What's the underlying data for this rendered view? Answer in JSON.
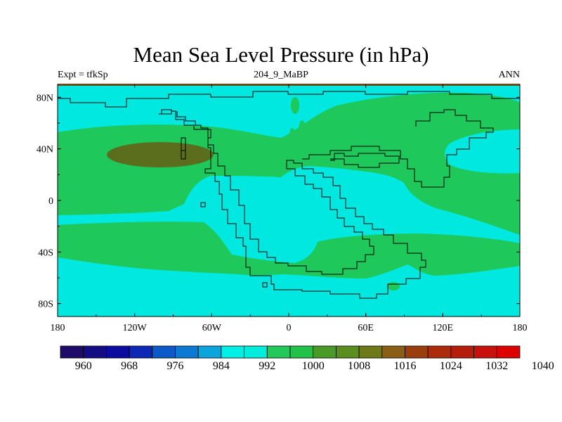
{
  "map": {
    "title": "Mean Sea Level Pressure (in hPa)",
    "left_label": "Expt = tfkSp",
    "center_label": "204_9_MaBP",
    "right_label": "ANN",
    "x_ticks": [
      "180",
      "120W",
      "60W",
      "0",
      "60E",
      "120E",
      "180"
    ],
    "y_ticks": [
      "80N",
      "40N",
      "0",
      "40S",
      "80S"
    ],
    "colorbar": {
      "colors": [
        "#1e0c68",
        "#140c82",
        "#0c0ca0",
        "#0c28b4",
        "#0c5ac8",
        "#0c7ad2",
        "#0ca4dc",
        "#00f0e6",
        "#00ecdc",
        "#22c85a",
        "#22c24a",
        "#4a9a28",
        "#5a8e1e",
        "#6e7a1a",
        "#8a5e14",
        "#9a3e0e",
        "#aa2c0c",
        "#b61e0c",
        "#c8100c",
        "#dc0000"
      ],
      "labels": [
        "960",
        "968",
        "976",
        "984",
        "992",
        "1000",
        "1008",
        "1016",
        "1024",
        "1032",
        "1040"
      ]
    },
    "colors": {
      "cyan_low": "#00e8e0",
      "green_mid": "#1ec85a",
      "brown_high": "#5a6e1e"
    }
  }
}
